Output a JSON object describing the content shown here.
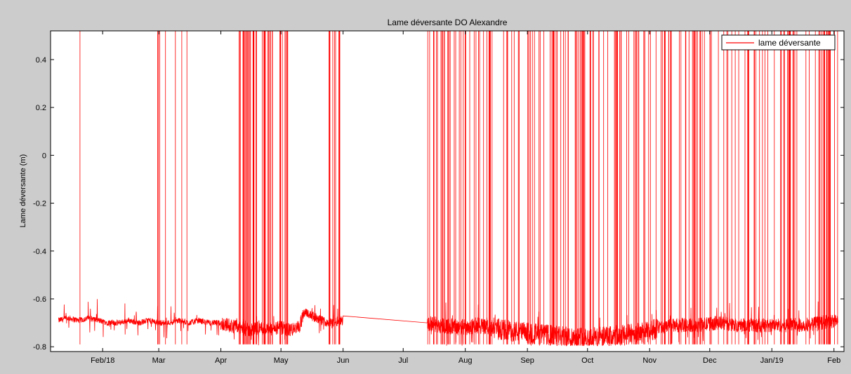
{
  "chart_data": {
    "type": "line",
    "title": "Lame déversante DO Alexandre",
    "xlabel": "",
    "ylabel": "Lame déversante (m)",
    "xlim": [
      "2018-01-06",
      "2019-02-06"
    ],
    "ylim": [
      -0.82,
      0.52
    ],
    "x_ticks": [
      {
        "date": "2018-02-01",
        "label": "Feb/18"
      },
      {
        "date": "2018-03-01",
        "label": "Mar"
      },
      {
        "date": "2018-04-01",
        "label": "Apr"
      },
      {
        "date": "2018-05-01",
        "label": "May"
      },
      {
        "date": "2018-06-01",
        "label": "Jun"
      },
      {
        "date": "2018-07-01",
        "label": "Jul"
      },
      {
        "date": "2018-08-01",
        "label": "Aug"
      },
      {
        "date": "2018-09-01",
        "label": "Sep"
      },
      {
        "date": "2018-10-01",
        "label": "Oct"
      },
      {
        "date": "2018-11-01",
        "label": "Nov"
      },
      {
        "date": "2018-12-01",
        "label": "Dec"
      },
      {
        "date": "2019-01-01",
        "label": "Jan/19"
      },
      {
        "date": "2019-02-01",
        "label": "Feb"
      }
    ],
    "y_ticks": [
      {
        "value": 0.4,
        "label": "0.4"
      },
      {
        "value": 0.2,
        "label": "0.2"
      },
      {
        "value": 0,
        "label": "0"
      },
      {
        "value": -0.2,
        "label": "-0.2"
      },
      {
        "value": -0.4,
        "label": "-0.4"
      },
      {
        "value": -0.6,
        "label": "-0.6"
      },
      {
        "value": -0.8,
        "label": "-0.8"
      }
    ],
    "grid": false,
    "legend": {
      "placement": "top-right"
    },
    "series": [
      {
        "name": "lame déversante",
        "color": "#ff0000",
        "points": [
          [
            "2018-01-10",
            -0.69
          ],
          [
            "2018-01-15",
            -0.68
          ],
          [
            "2018-01-20",
            -0.69
          ],
          [
            "2018-01-25",
            -0.68
          ],
          [
            "2018-01-30",
            -0.69
          ],
          [
            "2018-02-04",
            -0.7
          ],
          [
            "2018-02-09",
            -0.7
          ],
          [
            "2018-02-14",
            -0.69
          ],
          [
            "2018-02-19",
            -0.7
          ],
          [
            "2018-02-24",
            -0.69
          ],
          [
            "2018-03-01",
            -0.7
          ],
          [
            "2018-03-06",
            -0.7
          ],
          [
            "2018-03-11",
            -0.69
          ],
          [
            "2018-03-16",
            -0.7
          ],
          [
            "2018-03-21",
            -0.69
          ],
          [
            "2018-03-26",
            -0.7
          ],
          [
            "2018-03-31",
            -0.7
          ],
          [
            "2018-04-05",
            -0.71
          ],
          [
            "2018-04-10",
            -0.72
          ],
          [
            "2018-04-15",
            -0.73
          ],
          [
            "2018-04-20",
            -0.72
          ],
          [
            "2018-04-25",
            -0.73
          ],
          [
            "2018-04-30",
            -0.72
          ],
          [
            "2018-05-05",
            -0.73
          ],
          [
            "2018-05-10",
            -0.72
          ],
          [
            "2018-05-13",
            -0.65
          ],
          [
            "2018-05-16",
            -0.67
          ],
          [
            "2018-05-21",
            -0.69
          ],
          [
            "2018-05-26",
            -0.7
          ],
          [
            "2018-05-31",
            -0.69
          ],
          [
            "2018-07-13",
            -0.7
          ],
          [
            "2018-07-20",
            -0.71
          ],
          [
            "2018-07-30",
            -0.72
          ],
          [
            "2018-08-08",
            -0.71
          ],
          [
            "2018-08-13",
            -0.72
          ],
          [
            "2018-08-20",
            -0.73
          ],
          [
            "2018-08-30",
            -0.74
          ],
          [
            "2018-09-10",
            -0.75
          ],
          [
            "2018-09-20",
            -0.76
          ],
          [
            "2018-09-30",
            -0.76
          ],
          [
            "2018-10-10",
            -0.76
          ],
          [
            "2018-10-20",
            -0.75
          ],
          [
            "2018-10-31",
            -0.74
          ],
          [
            "2018-11-05",
            -0.72
          ],
          [
            "2018-11-15",
            -0.71
          ],
          [
            "2018-11-25",
            -0.71
          ],
          [
            "2018-12-05",
            -0.7
          ],
          [
            "2018-12-15",
            -0.71
          ],
          [
            "2018-12-25",
            -0.71
          ],
          [
            "2019-01-05",
            -0.71
          ],
          [
            "2019-01-15",
            -0.71
          ],
          [
            "2019-01-25",
            -0.7
          ],
          [
            "2019-02-03",
            -0.69
          ]
        ]
      }
    ]
  }
}
